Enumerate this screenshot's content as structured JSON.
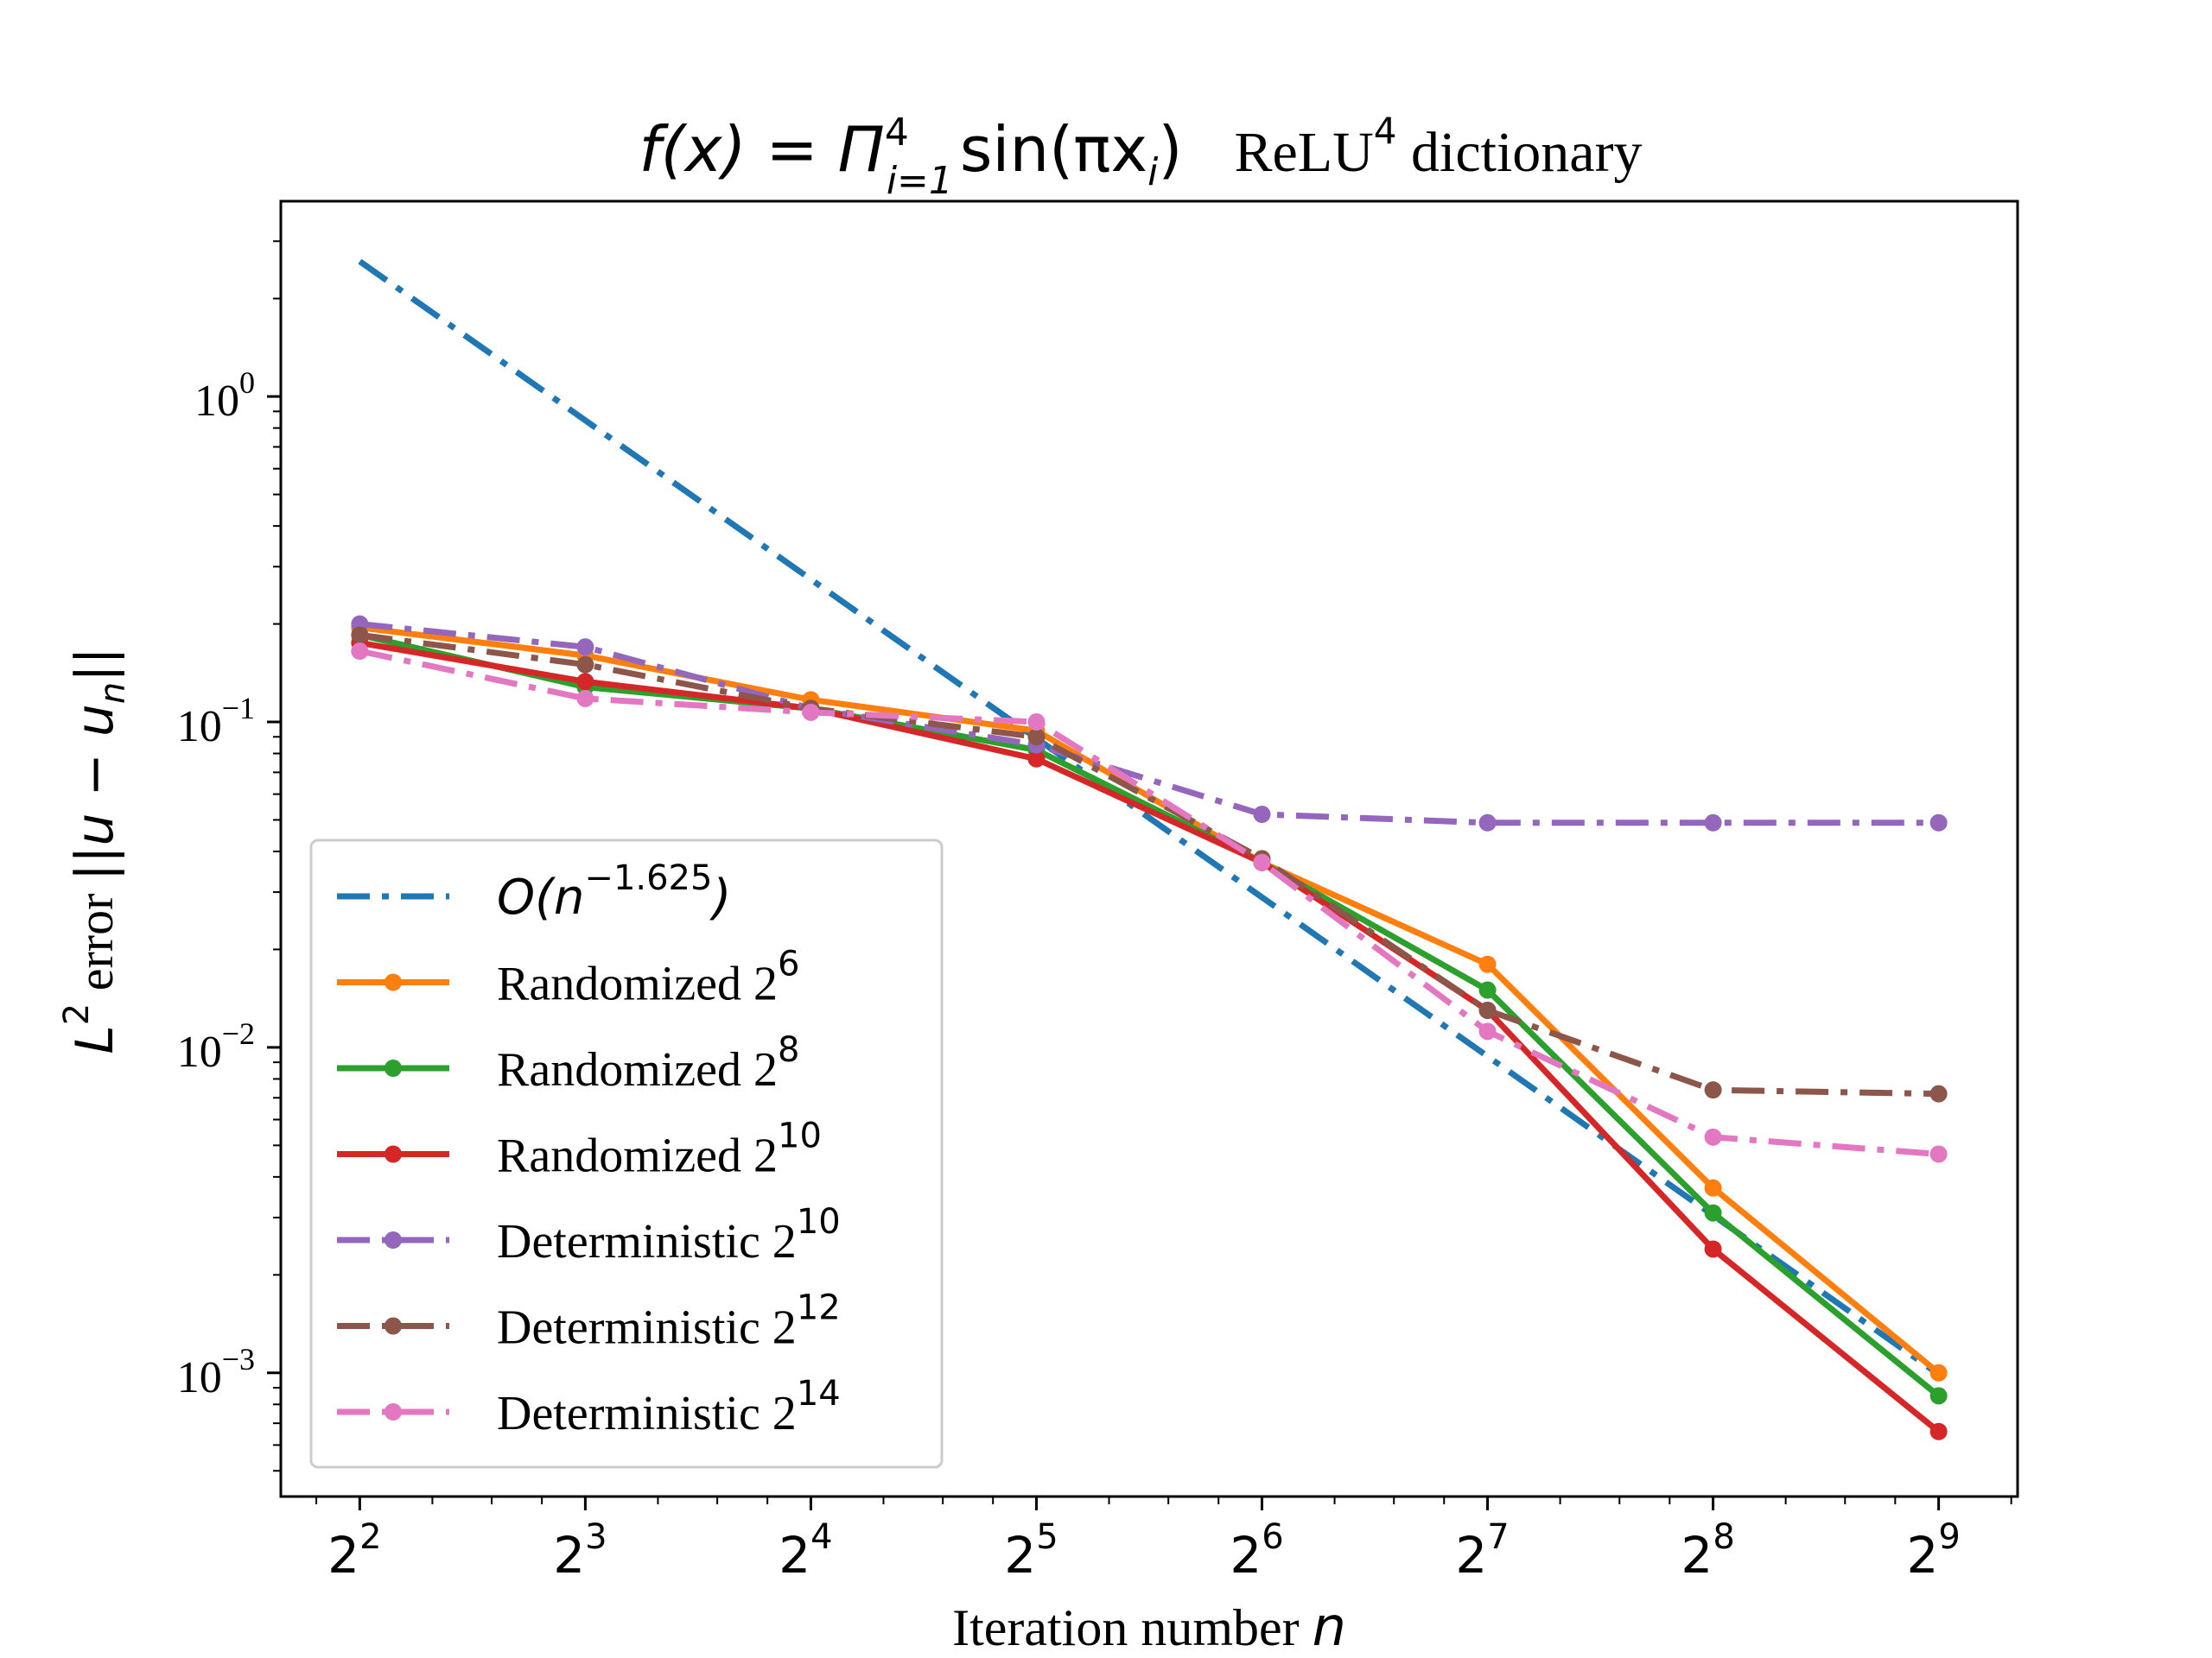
{
  "chart_data": {
    "type": "line",
    "title_math": "f(x) = Π⁴ᵢ₌₁ sin(πxᵢ)",
    "title_parts": {
      "func": "f(x) = Π",
      "prod_sup": "4",
      "prod_sub": "i=1",
      "sin": "sin(πx",
      "sin_sub": "i",
      "close": ")",
      "dict_text": "ReLU",
      "dict_sup": "4",
      "dict_rest": " dictionary"
    },
    "xlabel": "Iteration number n",
    "xlabel_parts": {
      "text": "Iteration number ",
      "var": "n"
    },
    "ylabel": "L² error ||u − uₙ||",
    "ylabel_parts": {
      "L": "L",
      "sup": "2",
      "text": " error ",
      "norm": "||u − u",
      "sub": "n",
      "close": "||"
    },
    "x_scale": "log2",
    "y_scale": "log10",
    "xlim_log2": [
      1.65,
      9.35
    ],
    "ylim_log10": [
      -3.38,
      0.6
    ],
    "x_ticks": [
      {
        "base": "2",
        "exp": "2",
        "log2": 2
      },
      {
        "base": "2",
        "exp": "3",
        "log2": 3
      },
      {
        "base": "2",
        "exp": "4",
        "log2": 4
      },
      {
        "base": "2",
        "exp": "5",
        "log2": 5
      },
      {
        "base": "2",
        "exp": "6",
        "log2": 6
      },
      {
        "base": "2",
        "exp": "7",
        "log2": 7
      },
      {
        "base": "2",
        "exp": "8",
        "log2": 8
      },
      {
        "base": "2",
        "exp": "9",
        "log2": 9
      }
    ],
    "y_ticks": [
      {
        "base": "10",
        "exp": "0",
        "log10": 0
      },
      {
        "base": "10",
        "exp": "−1",
        "log10": -1
      },
      {
        "base": "10",
        "exp": "−2",
        "log10": -2
      },
      {
        "base": "10",
        "exp": "−3",
        "log10": -3
      }
    ],
    "legend_position": "lower-left",
    "grid": false,
    "series": [
      {
        "key": "rate",
        "label_base": "O(n",
        "label_sup": "−1.625",
        "label_close": ")",
        "label_style": "math",
        "color": "#1f77b4",
        "dash": "dashdot",
        "markers": false,
        "x": [
          4,
          512
        ],
        "y": [
          2.6,
          0.00099
        ]
      },
      {
        "key": "rand-2-6",
        "label_base": "Randomized 2",
        "label_sup": "6",
        "color": "#ff7f0e",
        "dash": "solid",
        "markers": true,
        "x": [
          4,
          8,
          16,
          32,
          64,
          128,
          256,
          512
        ],
        "y": [
          0.195,
          0.16,
          0.117,
          0.094,
          0.037,
          0.018,
          0.0037,
          0.001
        ]
      },
      {
        "key": "rand-2-8",
        "label_base": "Randomized 2",
        "label_sup": "8",
        "color": "#2ca02c",
        "dash": "solid",
        "markers": true,
        "x": [
          4,
          8,
          16,
          32,
          64,
          128,
          256,
          512
        ],
        "y": [
          0.185,
          0.128,
          0.11,
          0.082,
          0.037,
          0.015,
          0.0031,
          0.00085
        ]
      },
      {
        "key": "rand-2-10",
        "label_base": "Randomized 2",
        "label_sup": "10",
        "color": "#d62728",
        "dash": "solid",
        "markers": true,
        "x": [
          4,
          8,
          16,
          32,
          64,
          128,
          256,
          512
        ],
        "y": [
          0.175,
          0.133,
          0.11,
          0.077,
          0.037,
          0.013,
          0.0024,
          0.00066
        ]
      },
      {
        "key": "det-2-10",
        "label_base": "Deterministic 2",
        "label_sup": "10",
        "color": "#9467bd",
        "dash": "dashdot",
        "markers": true,
        "x": [
          4,
          8,
          16,
          32,
          64,
          128,
          256,
          512
        ],
        "y": [
          0.2,
          0.17,
          0.11,
          0.085,
          0.052,
          0.049,
          0.049,
          0.049
        ]
      },
      {
        "key": "det-2-12",
        "label_base": "Deterministic 2",
        "label_sup": "12",
        "color": "#8c564b",
        "dash": "dashdot",
        "markers": true,
        "x": [
          4,
          8,
          16,
          32,
          64,
          128,
          256,
          512
        ],
        "y": [
          0.185,
          0.15,
          0.11,
          0.09,
          0.038,
          0.013,
          0.0074,
          0.0072
        ]
      },
      {
        "key": "det-2-14",
        "label_base": "Deterministic 2",
        "label_sup": "14",
        "color": "#e377c2",
        "dash": "dashdot",
        "markers": true,
        "x": [
          4,
          8,
          16,
          32,
          64,
          128,
          256,
          512
        ],
        "y": [
          0.165,
          0.118,
          0.107,
          0.1,
          0.037,
          0.0112,
          0.0053,
          0.0047
        ]
      }
    ]
  }
}
